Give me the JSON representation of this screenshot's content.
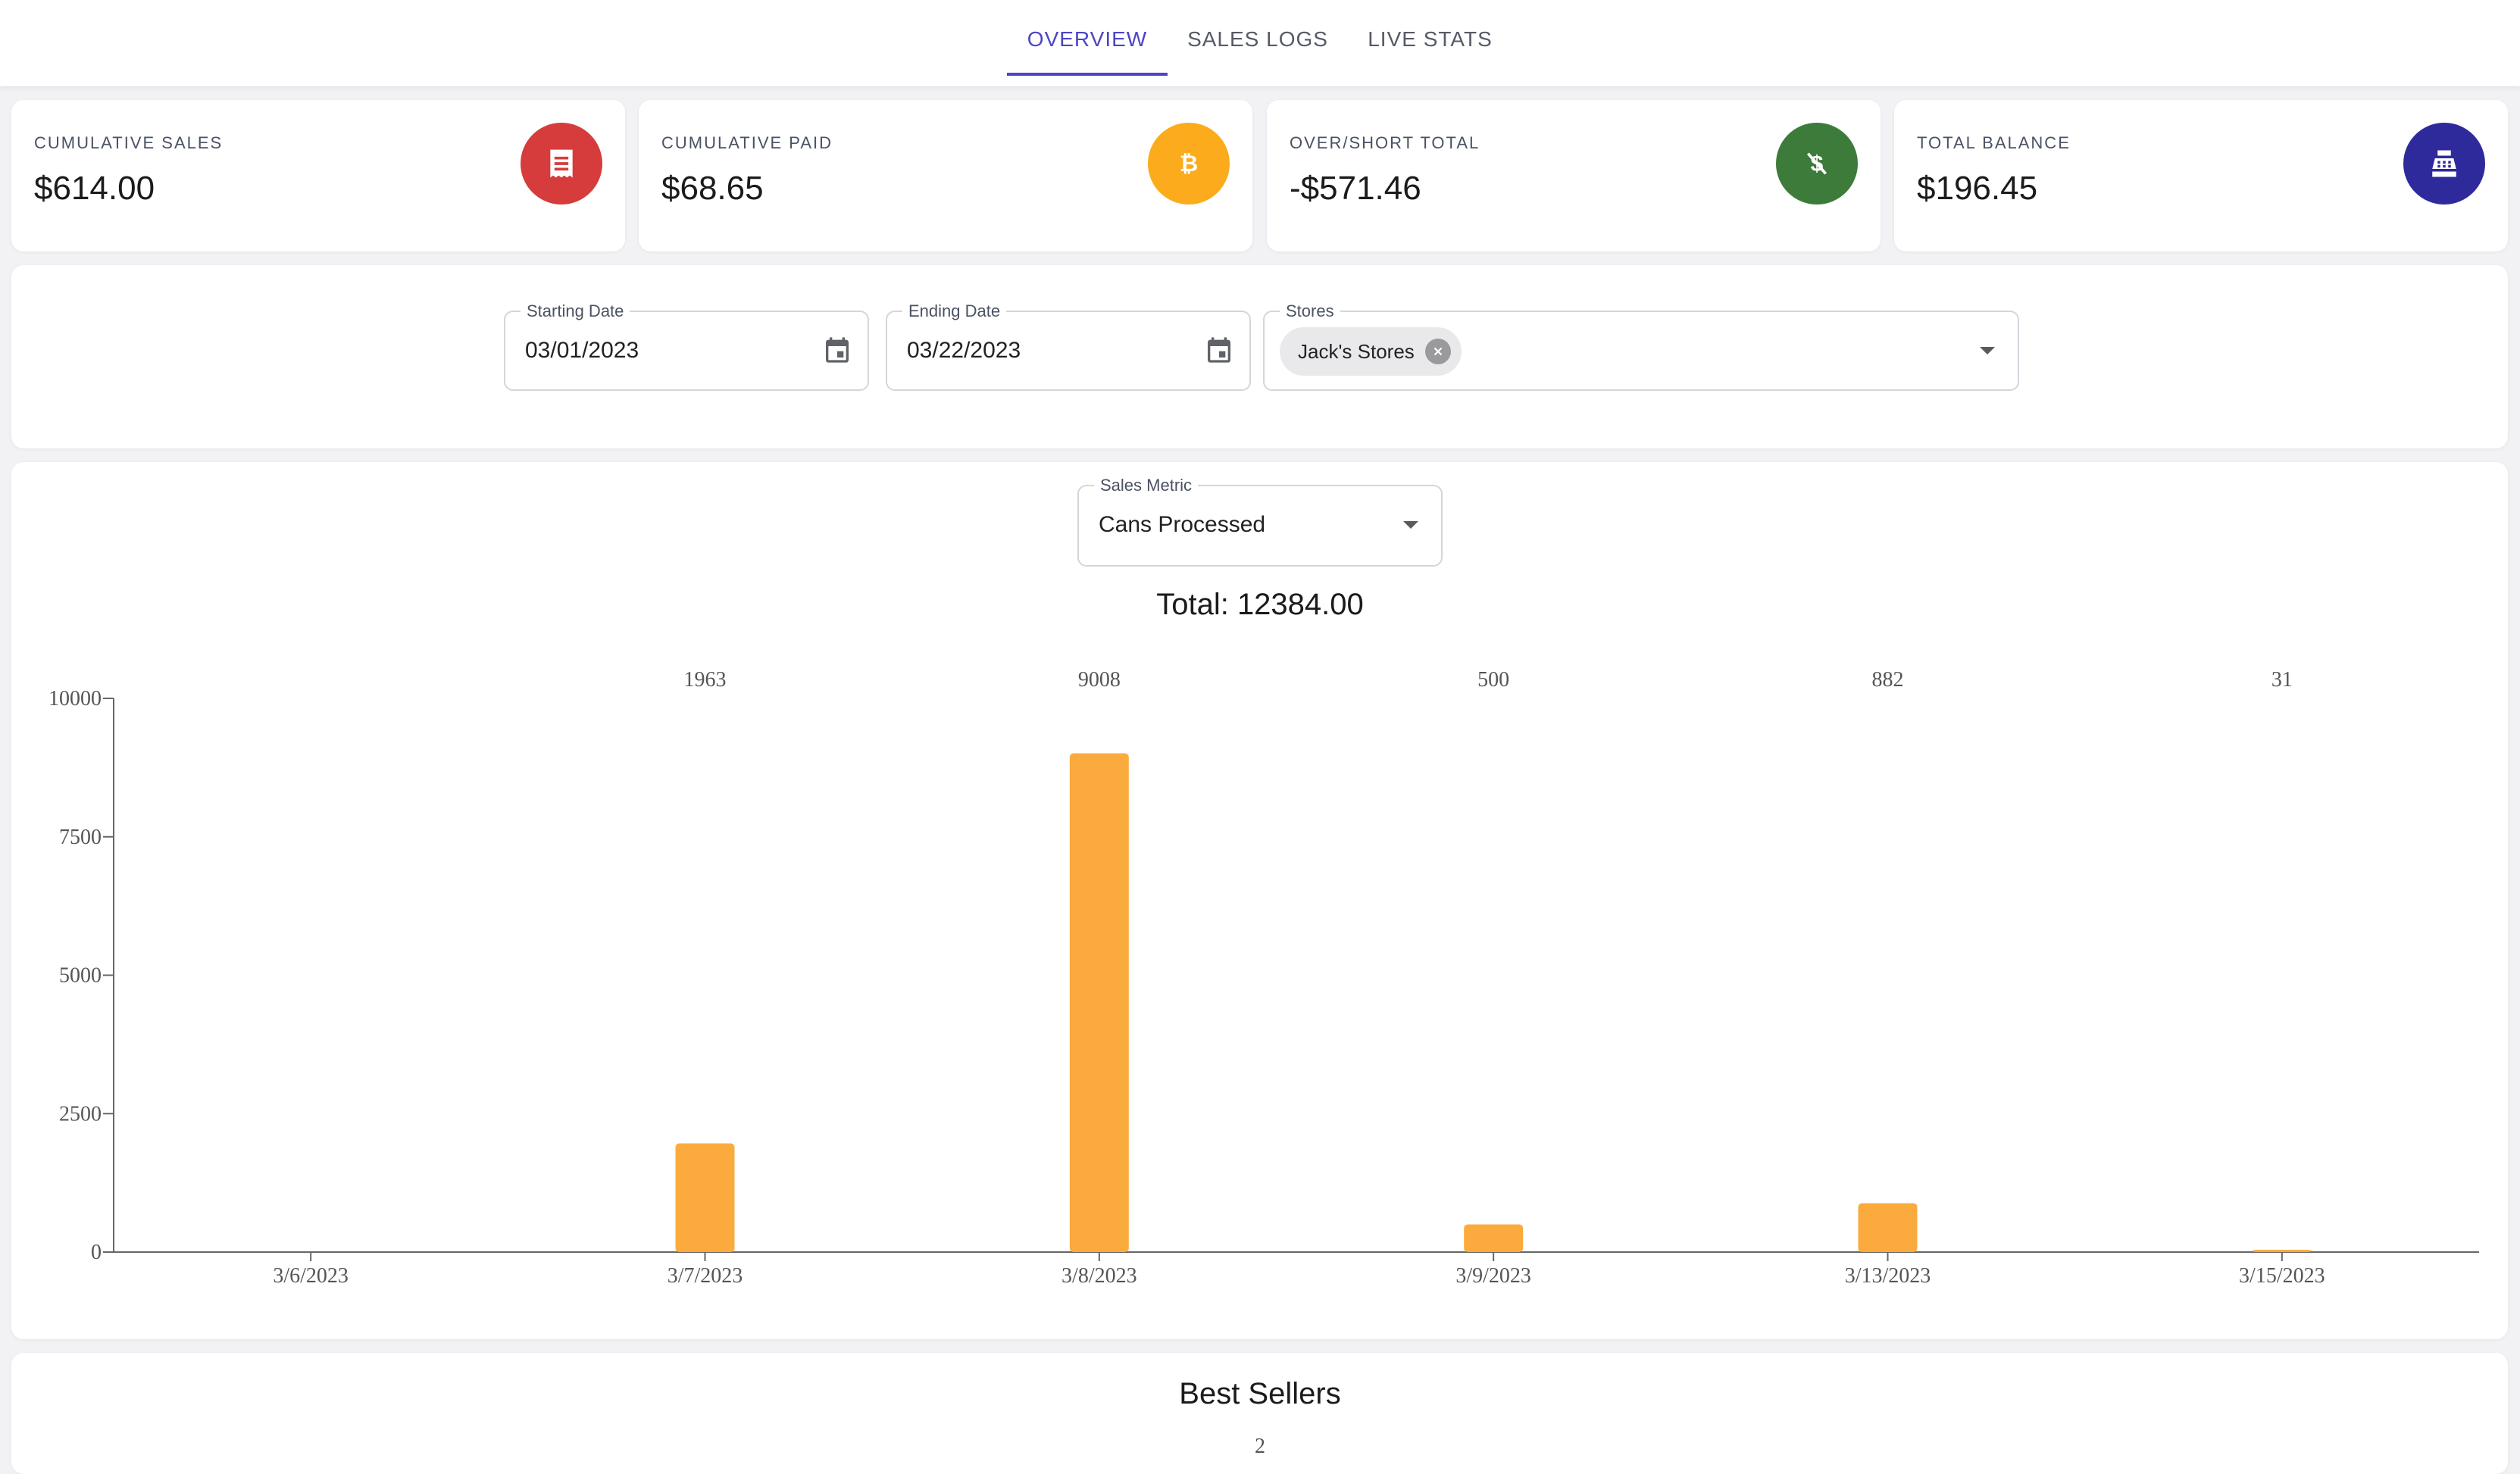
{
  "nav": {
    "tabs": [
      {
        "label": "OVERVIEW",
        "active": true
      },
      {
        "label": "SALES LOGS",
        "active": false
      },
      {
        "label": "LIVE STATS",
        "active": false
      }
    ],
    "accent": "#4b45c7"
  },
  "stats": [
    {
      "label": "CUMULATIVE SALES",
      "value": "$614.00",
      "icon": "receipt-icon",
      "color": "#d63c3c"
    },
    {
      "label": "CUMULATIVE PAID",
      "value": "$68.65",
      "icon": "bitcoin-icon",
      "color": "#fbab1b"
    },
    {
      "label": "OVER/SHORT TOTAL",
      "value": "-$571.46",
      "icon": "money-off-icon",
      "color": "#3d7b3a"
    },
    {
      "label": "TOTAL BALANCE",
      "value": "$196.45",
      "icon": "cash-register-icon",
      "color": "#2f2a9c"
    }
  ],
  "filters": {
    "start": {
      "label": "Starting Date",
      "value": "03/01/2023"
    },
    "end": {
      "label": "Ending Date",
      "value": "03/22/2023"
    },
    "stores": {
      "label": "Stores",
      "chip": "Jack's Stores"
    }
  },
  "metric": {
    "label": "Sales Metric",
    "value": "Cans Processed"
  },
  "total_text": "Total: 12384.00",
  "best_sellers": {
    "title": "Best Sellers",
    "partial_tick": "2"
  },
  "chart_data": {
    "type": "bar",
    "categories": [
      "3/6/2023",
      "3/7/2023",
      "3/8/2023",
      "3/9/2023",
      "3/13/2023",
      "3/15/2023"
    ],
    "values": [
      0,
      1963,
      9008,
      500,
      882,
      31
    ],
    "data_labels": [
      "",
      "1963",
      "9008",
      "500",
      "882",
      "31"
    ],
    "ylim": [
      0,
      10000
    ],
    "yticks": [
      0,
      2500,
      5000,
      7500,
      10000
    ],
    "bar_color": "#fbab3d",
    "title": "",
    "xlabel": "",
    "ylabel": ""
  }
}
